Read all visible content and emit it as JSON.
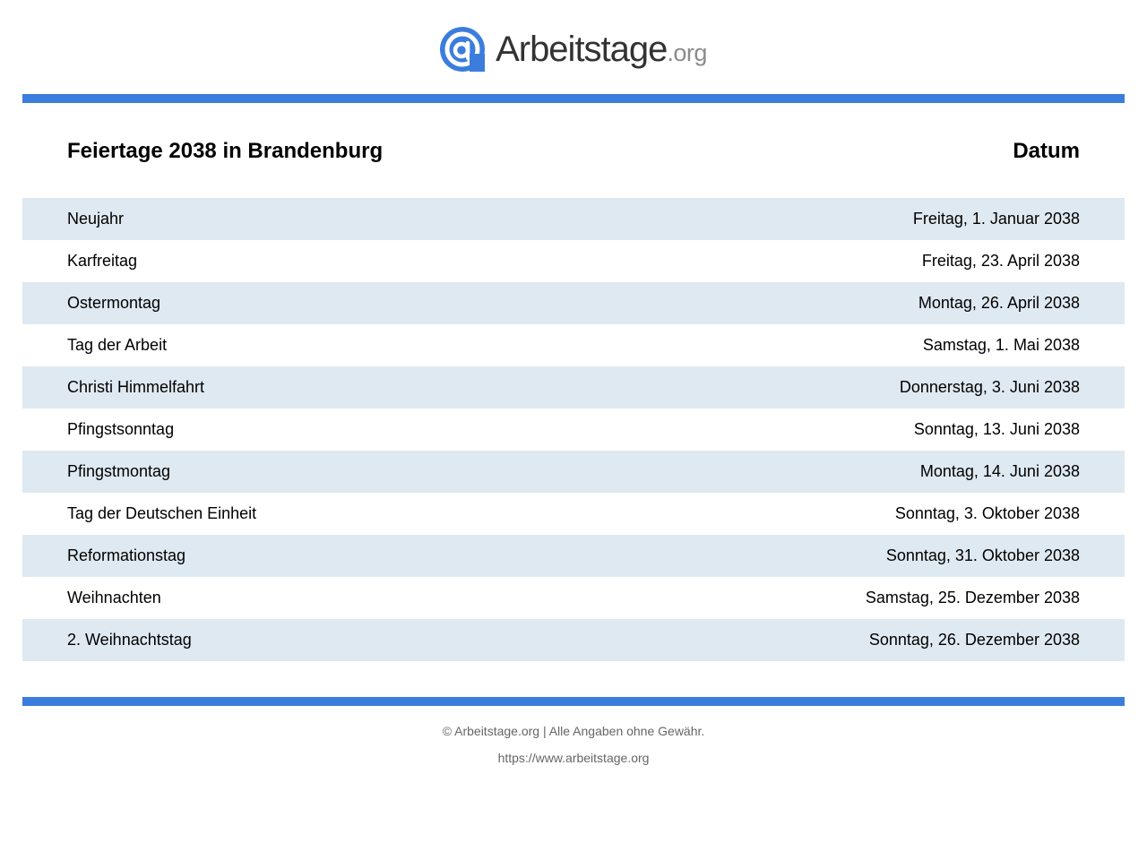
{
  "logo": {
    "main": "Arbeitstage",
    "tld": ".org",
    "brand_color": "#3b7ddd",
    "icon": "at-sign-icon"
  },
  "table": {
    "title": "Feiertage 2038 in Brandenburg",
    "date_header": "Datum",
    "stripe_color": "#dfe9f1",
    "rows": [
      {
        "name": "Neujahr",
        "date": "Freitag, 1. Januar 2038"
      },
      {
        "name": "Karfreitag",
        "date": "Freitag, 23. April 2038"
      },
      {
        "name": "Ostermontag",
        "date": "Montag, 26. April 2038"
      },
      {
        "name": "Tag der Arbeit",
        "date": "Samstag, 1. Mai 2038"
      },
      {
        "name": "Christi Himmelfahrt",
        "date": "Donnerstag, 3. Juni 2038"
      },
      {
        "name": "Pfingstsonntag",
        "date": "Sonntag, 13. Juni 2038"
      },
      {
        "name": "Pfingstmontag",
        "date": "Montag, 14. Juni 2038"
      },
      {
        "name": "Tag der Deutschen Einheit",
        "date": "Sonntag, 3. Oktober 2038"
      },
      {
        "name": "Reformationstag",
        "date": "Sonntag, 31. Oktober 2038"
      },
      {
        "name": "Weihnachten",
        "date": "Samstag, 25. Dezember 2038"
      },
      {
        "name": "2. Weihnachtstag",
        "date": "Sonntag, 26. Dezember 2038"
      }
    ]
  },
  "footer": {
    "copyright": "© Arbeitstage.org | Alle Angaben ohne Gewähr.",
    "url": "https://www.arbeitstage.org"
  }
}
